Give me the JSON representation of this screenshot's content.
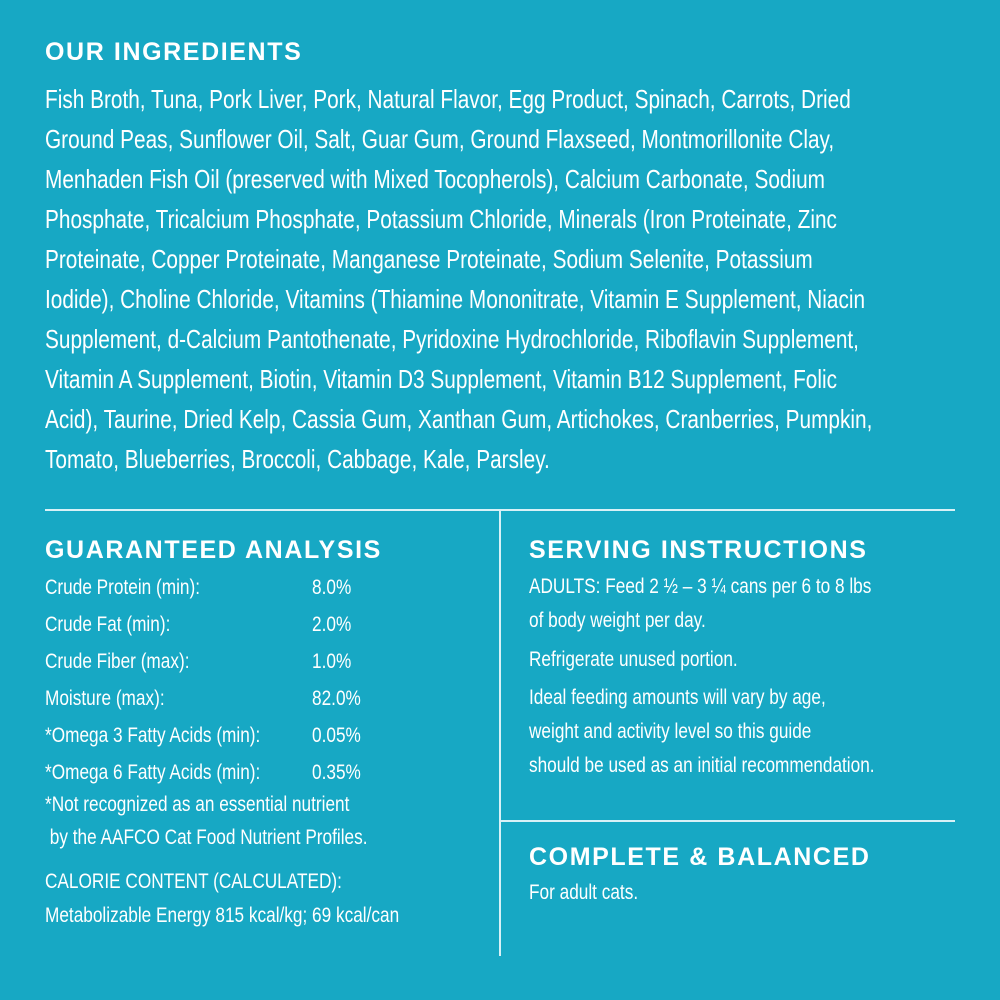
{
  "ingredients": {
    "title": "OUR INGREDIENTS",
    "lines": [
      "Fish Broth, Tuna, Pork Liver, Pork, Natural Flavor, Egg Product, Spinach, Carrots, Dried",
      "Ground Peas, Sunflower Oil, Salt, Guar Gum, Ground Flaxseed, Montmorillonite Clay,",
      "Menhaden Fish Oil (preserved with Mixed Tocopherols), Calcium Carbonate, Sodium",
      "Phosphate, Tricalcium Phosphate, Potassium Chloride, Minerals (Iron Proteinate, Zinc",
      "Proteinate, Copper Proteinate, Manganese Proteinate, Sodium Selenite, Potassium",
      "Iodide), Choline Chloride, Vitamins (Thiamine Mononitrate, Vitamin E Supplement, Niacin",
      "Supplement, d-Calcium Pantothenate, Pyridoxine Hydrochloride, Riboflavin Supplement,",
      "Vitamin A Supplement, Biotin, Vitamin D3 Supplement, Vitamin B12 Supplement, Folic",
      "Acid), Taurine, Dried Kelp, Cassia Gum, Xanthan Gum, Artichokes, Cranberries, Pumpkin,",
      "Tomato, Blueberries, Broccoli, Cabbage, Kale, Parsley."
    ]
  },
  "analysis": {
    "title": "GUARANTEED ANALYSIS",
    "rows": [
      {
        "label": "Crude Protein (min):",
        "value": "8.0%"
      },
      {
        "label": "Crude Fat (min):",
        "value": "2.0%"
      },
      {
        "label": "Crude Fiber (max):",
        "value": "1.0%"
      },
      {
        "label": "Moisture (max):",
        "value": "82.0%"
      },
      {
        "label": "*Omega 3 Fatty Acids (min):",
        "value": "0.05%"
      },
      {
        "label": "*Omega 6 Fatty Acids (min):",
        "value": "0.35%"
      }
    ],
    "footnote_1": "*Not recognized as an essential nutrient",
    "footnote_2": " by the AAFCO Cat Food Nutrient Profiles.",
    "calorie_title": "CALORIE CONTENT (CALCULATED):",
    "calorie_value": "Metabolizable Energy 815 kcal/kg; 69 kcal/can"
  },
  "serving": {
    "title": "SERVING INSTRUCTIONS",
    "lines": [
      "ADULTS: Feed 2 ½ – 3 ¼ cans per 6 to 8 lbs",
      "of body weight per day.",
      "Refrigerate unused portion.",
      "Ideal feeding amounts will vary by age,",
      "weight and activity level so this guide",
      "should be used as an initial recommendation."
    ]
  },
  "complete": {
    "title": "COMPLETE & BALANCED",
    "text": "For adult cats."
  },
  "colors": {
    "background": "#17a8c4",
    "text": "#ffffff"
  }
}
